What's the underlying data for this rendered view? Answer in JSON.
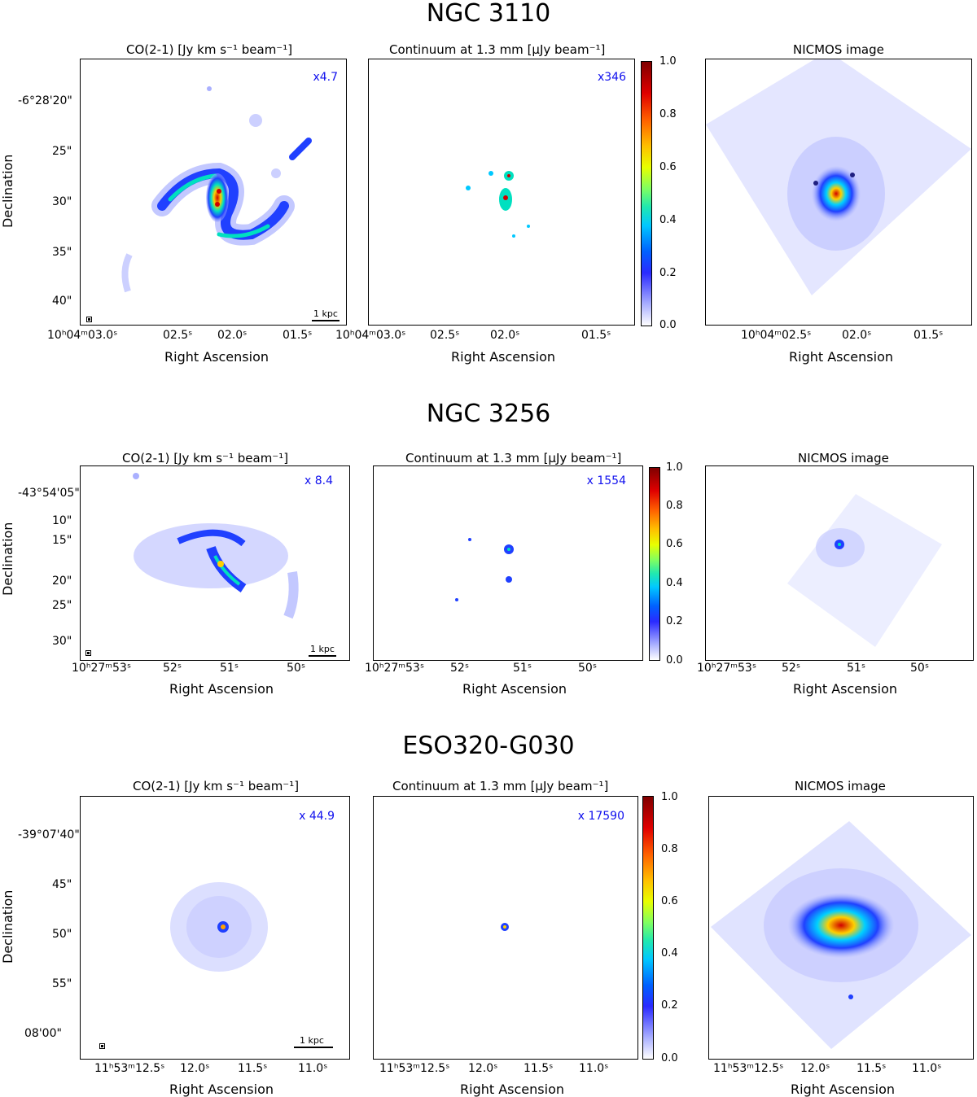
{
  "rows": [
    {
      "galaxy": "NGC 3110",
      "co_title": "CO(2-1) [Jy km s$^{-1}$ beam$^{-1}$]",
      "co_title_display": "CO(2-1) [Jy km s⁻¹ beam⁻¹]",
      "cont_title": "Continuum at 1.3 mm [μJy beam⁻¹]",
      "nicmos_title": "NICMOS image",
      "co_factor": "x4.7",
      "cont_factor": "x346",
      "dec_ticks": [
        "-6°28'20\"",
        "25\"",
        "30\"",
        "35\"",
        "40\""
      ],
      "ra_ticks_co": [
        "10ʰ04ᵐ03.0ˢ",
        "02.5ˢ",
        "02.0ˢ",
        "01.5ˢ"
      ],
      "ra_ticks_cont": [
        "10ʰ04ᵐ03.0ˢ",
        "02.5ˢ",
        "02.0ˢ",
        "01.5ˢ"
      ],
      "ra_ticks_nicmos": [
        "10ʰ04ᵐ02.5ˢ",
        "02.0ˢ",
        "01.5ˢ"
      ],
      "scalebar": "1 kpc"
    },
    {
      "galaxy": "NGC 3256",
      "co_title_display": "CO(2-1) [Jy km s⁻¹ beam⁻¹]",
      "cont_title": "Continuum at 1.3 mm [μJy beam⁻¹]",
      "nicmos_title": "NICMOS image",
      "co_factor": "x 8.4",
      "cont_factor": "x 1554",
      "dec_ticks": [
        "-43°54'05\"",
        "10\"",
        "15\"",
        "20\"",
        "25\"",
        "30\""
      ],
      "ra_ticks_co": [
        "10ʰ27ᵐ53ˢ",
        "52ˢ",
        "51ˢ",
        "50ˢ"
      ],
      "ra_ticks_cont": [
        "10ʰ27ᵐ53ˢ",
        "52ˢ",
        "51ˢ",
        "50ˢ"
      ],
      "ra_ticks_nicmos": [
        "10ʰ27ᵐ53ˢ",
        "52ˢ",
        "51ˢ",
        "50ˢ"
      ],
      "scalebar": "1 kpc"
    },
    {
      "galaxy": "ESO320-G030",
      "co_title_display": "CO(2-1) [Jy km s⁻¹ beam⁻¹]",
      "cont_title": "Continuum at 1.3 mm [μJy beam⁻¹]",
      "nicmos_title": "NICMOS image",
      "co_factor": "x 44.9",
      "cont_factor": "x 17590",
      "dec_ticks": [
        "-39°07'40\"",
        "45\"",
        "50\"",
        "55\"",
        "08'00\""
      ],
      "ra_ticks_co": [
        "11ʰ53ᵐ12.5ˢ",
        "12.0ˢ",
        "11.5ˢ",
        "11.0ˢ"
      ],
      "ra_ticks_cont": [
        "11ʰ53ᵐ12.5ˢ",
        "12.0ˢ",
        "11.5ˢ",
        "11.0ˢ"
      ],
      "ra_ticks_nicmos": [
        "11ʰ53ᵐ12.5ˢ",
        "12.0ˢ",
        "11.5ˢ",
        "11.0ˢ"
      ],
      "scalebar": "1 kpc"
    }
  ],
  "axis": {
    "x_label": "Right Ascension",
    "y_label": "Declination"
  },
  "colorbar_ticks": [
    "1.0",
    "0.8",
    "0.6",
    "0.4",
    "0.2",
    "0.0"
  ],
  "colors": {
    "factor_text": "#1010ee",
    "low": "#aab0ff",
    "mid": "#00c8ff",
    "high": "#e00000"
  }
}
